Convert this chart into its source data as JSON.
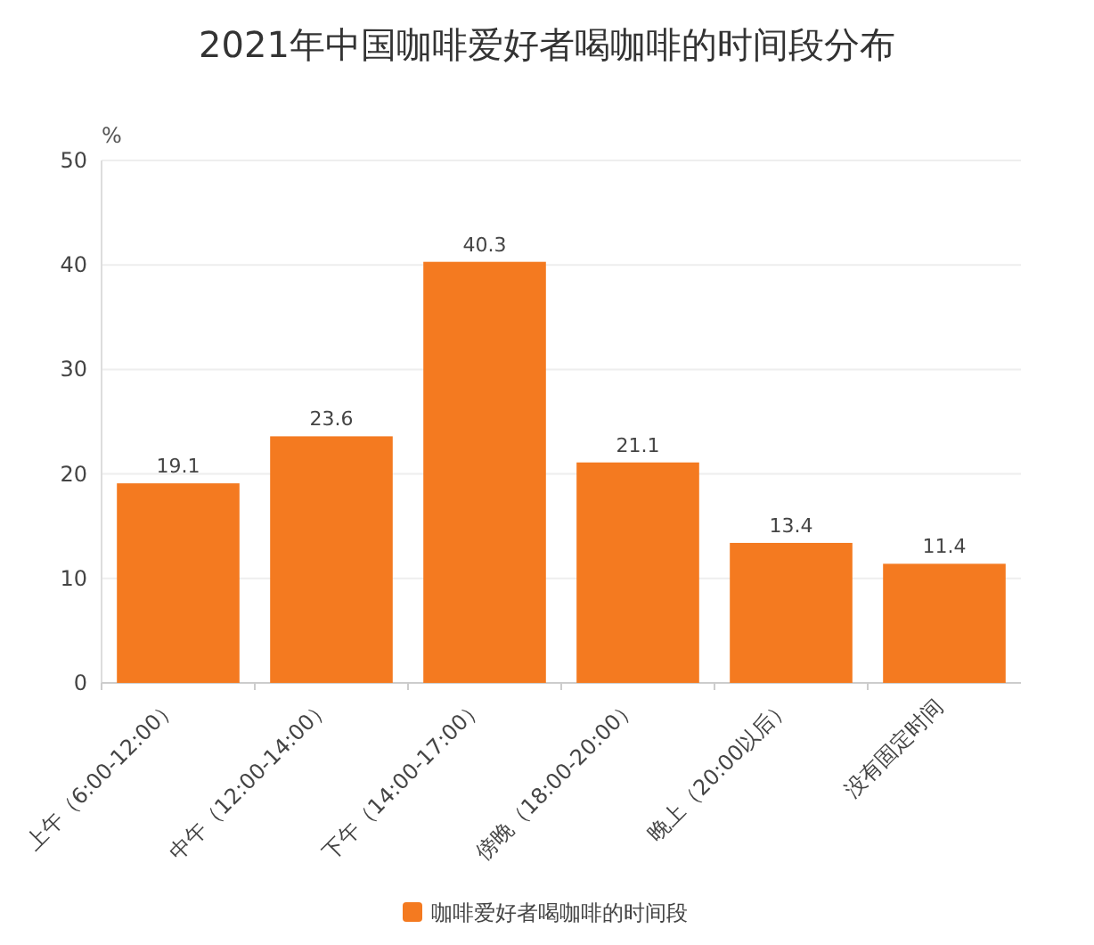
{
  "chart_data": {
    "type": "bar",
    "title": "2021年中国咖啡爱好者喝咖啡的时间段分布",
    "ylabel": "%",
    "categories": [
      "上午（6:00-12:00）",
      "中午（12:00-14:00）",
      "下午（14:00-17:00）",
      "傍晚（18:00-20:00）",
      "晚上（20:00以后）",
      "没有固定时间"
    ],
    "series": [
      {
        "name": "咖啡爱好者喝咖啡的时间段",
        "color": "#f47a20",
        "values": [
          19.1,
          23.6,
          40.3,
          21.1,
          13.4,
          11.4
        ]
      }
    ],
    "ylim": [
      0,
      50
    ],
    "yticks": [
      0,
      10,
      20,
      30,
      40,
      50
    ],
    "grid": "y",
    "legend": "bottom",
    "data_labels": true
  }
}
